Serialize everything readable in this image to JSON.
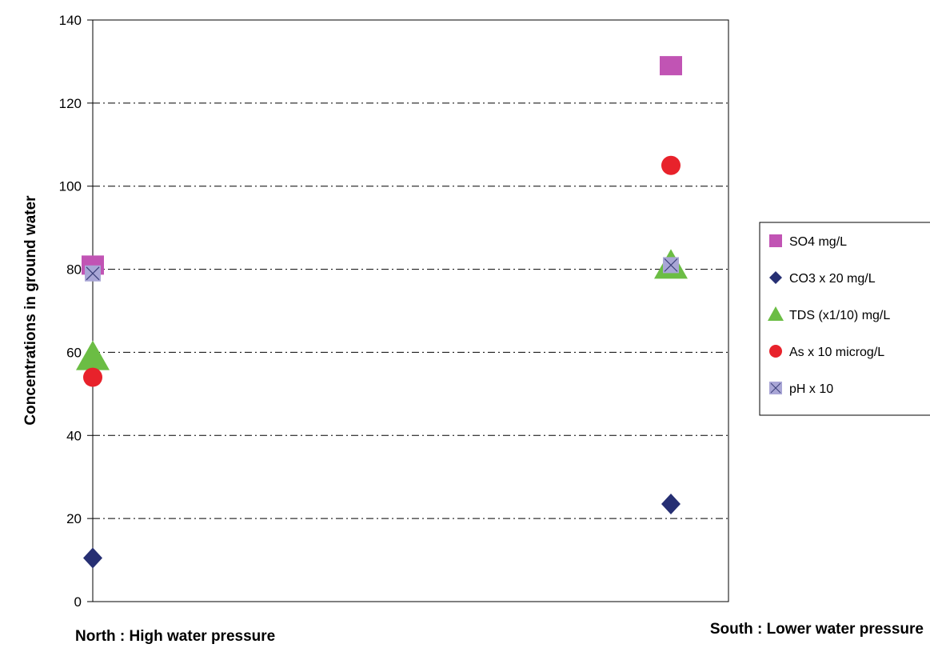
{
  "chart_data": {
    "type": "scatter",
    "title": "",
    "xlabel": "",
    "ylabel": "Concentrations in ground water",
    "categories": [
      "North : High water pressure",
      "South : Lower water pressure"
    ],
    "ylim": [
      0,
      140
    ],
    "yticks": [
      0,
      20,
      40,
      60,
      80,
      100,
      120,
      140
    ],
    "grid": "horizontal dash-dot",
    "legend_position": "right",
    "series": [
      {
        "name": "SO4 mg/L",
        "marker": "square",
        "color": "#c154b4",
        "values": [
          81,
          129
        ]
      },
      {
        "name": "CO3 x 20 mg/L",
        "marker": "diamond",
        "color": "#262f73",
        "values": [
          10.5,
          23.5
        ]
      },
      {
        "name": "TDS (x1/10) mg/L",
        "marker": "triangle",
        "color": "#6bbd44",
        "values": [
          59,
          81
        ]
      },
      {
        "name": "As x 10 microg/L",
        "marker": "circle",
        "color": "#e8222b",
        "values": [
          54,
          105
        ]
      },
      {
        "name": "pH x 10",
        "marker": "x-square",
        "color": "#a9a6d6",
        "values": [
          79,
          81
        ]
      }
    ]
  }
}
